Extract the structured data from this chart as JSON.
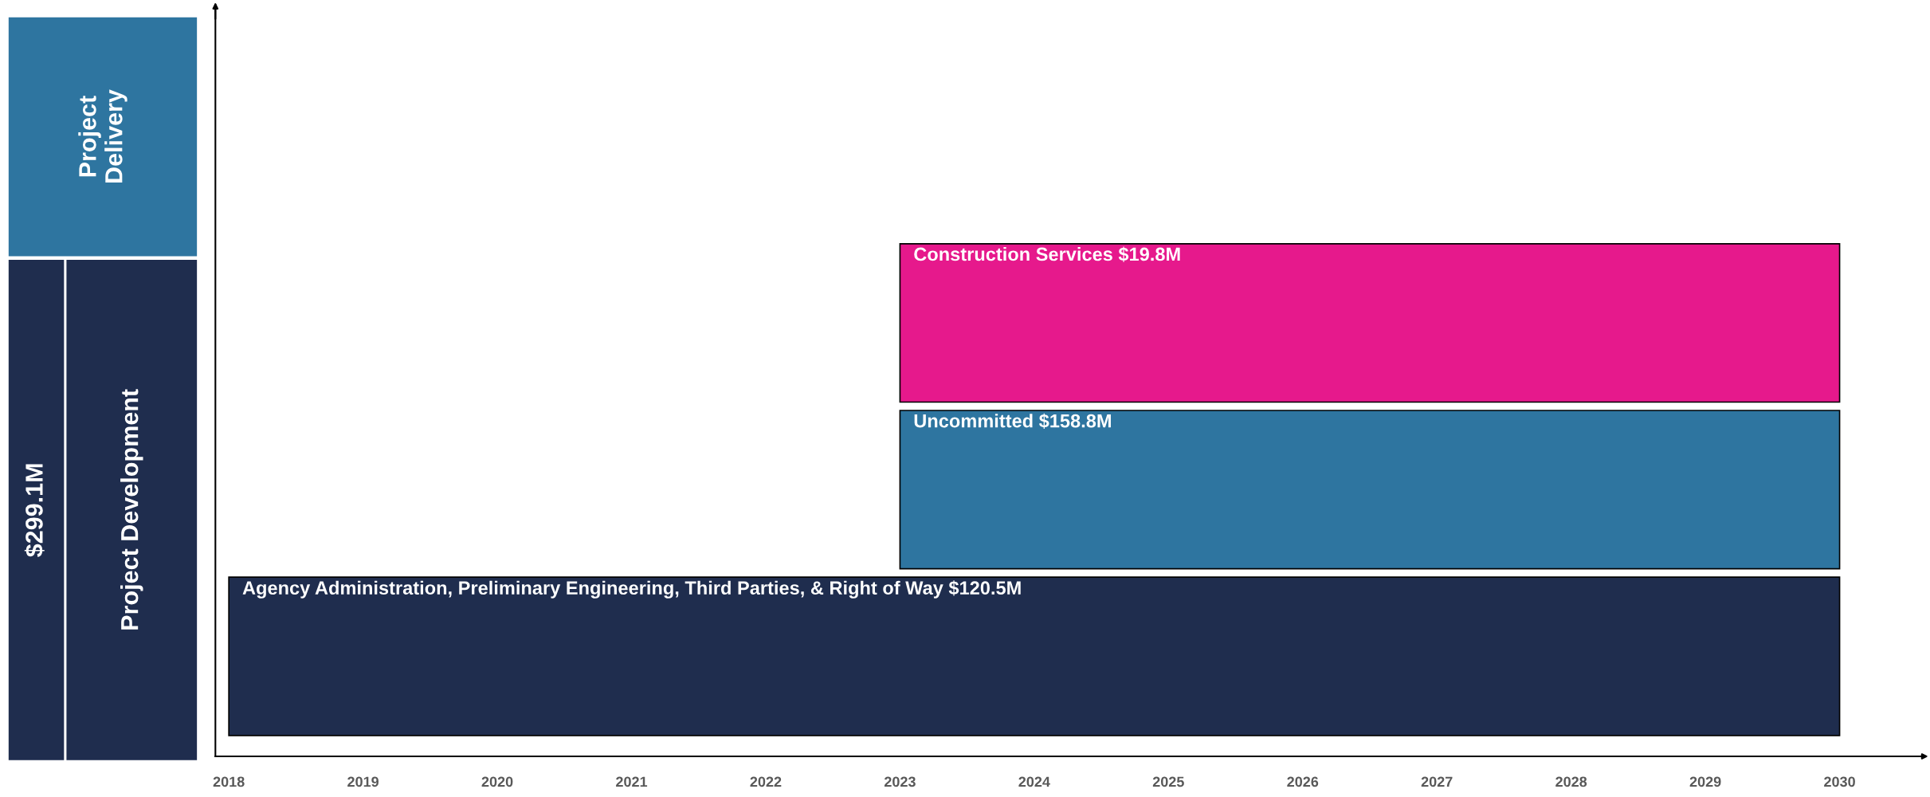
{
  "chart_data": {
    "type": "bar",
    "orientation": "horizontal",
    "categories": [
      null,
      null,
      null
    ],
    "series": [
      {
        "values": [
          7,
          7,
          12
        ],
        "base": [
          2023,
          2023,
          2018
        ],
        "colors": [
          "#e6198c",
          "#2e75a0",
          "#1f2d4e"
        ],
        "value_labels": [
          "Construction Services $19.8M",
          "Uncommitted $158.8M",
          "Agency Administration, Preliminary Engineering, Third Parties, & Right of Way $120.5M"
        ]
      }
    ],
    "xlim": [
      2017.9,
      2030.6
    ],
    "xticks": [
      2018,
      2019,
      2020,
      2021,
      2022,
      2023,
      2024,
      2025,
      2026,
      2027,
      2028,
      2029,
      2030
    ],
    "tick_labels": "x",
    "grid": false,
    "legend": false,
    "annotations": [
      "Project Delivery",
      "$299.1M",
      "Project Development"
    ]
  }
}
